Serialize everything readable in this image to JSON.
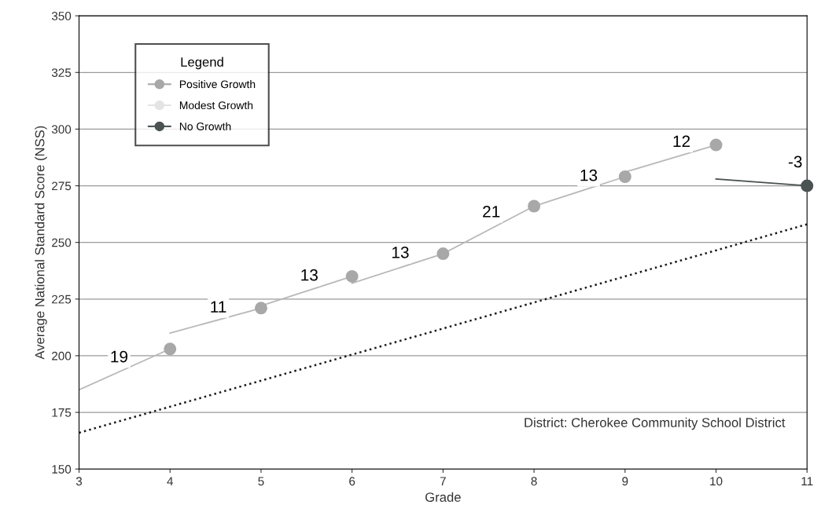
{
  "chart_data": {
    "type": "line",
    "xlabel": "Grade",
    "ylabel": "Average National Standard Score (NSS)",
    "legend_title": "Legend",
    "xlim": [
      3,
      11
    ],
    "xticks": [
      3,
      4,
      5,
      6,
      7,
      8,
      9,
      10,
      11
    ],
    "ylim": [
      150,
      350
    ],
    "yticks": [
      150,
      175,
      200,
      225,
      250,
      275,
      300,
      325,
      350
    ],
    "grid": "y",
    "legend": "top left",
    "series": [
      {
        "color": "#b8b8b8",
        "marker": "none",
        "line_style": "solid",
        "x": [
          3,
          4,
          null,
          4,
          5,
          null,
          5,
          6,
          null,
          6,
          7,
          null,
          7,
          8,
          null,
          8,
          9,
          null,
          9,
          10
        ],
        "values": [
          185,
          203,
          null,
          210,
          221,
          null,
          222,
          235,
          null,
          232,
          245,
          null,
          245,
          266,
          null,
          266,
          279,
          null,
          281,
          293
        ]
      },
      {
        "color": "#4a5252",
        "marker": "none",
        "line_style": "solid",
        "x": [
          10,
          11
        ],
        "values": [
          278,
          275
        ]
      },
      {
        "color": "#1a1a1a",
        "marker": "none",
        "line_style": "dotted",
        "x": [
          3,
          11
        ],
        "values": [
          166,
          258
        ]
      },
      {
        "name": "Positive Growth",
        "type": "scatter",
        "color": "#a8a8a8",
        "marker": "circle",
        "x": [
          4,
          5,
          6,
          7,
          8,
          9,
          10
        ],
        "values": [
          203,
          221,
          235,
          245,
          266,
          279,
          293
        ]
      },
      {
        "name": "Modest Growth",
        "type": "scatter",
        "color": "#e4e4e4",
        "marker": "circle"
      },
      {
        "name": "No Growth",
        "type": "scatter",
        "color": "#4a5252",
        "marker": "circle",
        "x": [
          11
        ],
        "values": [
          275
        ]
      }
    ],
    "annotations": [
      {
        "text": "19",
        "x": 3.44,
        "y": 199
      },
      {
        "text": "11",
        "x": 4.53,
        "y": 221
      },
      {
        "text": "13",
        "x": 5.53,
        "y": 235
      },
      {
        "text": "13",
        "x": 6.53,
        "y": 245
      },
      {
        "text": "21",
        "x": 7.53,
        "y": 263
      },
      {
        "text": "13",
        "x": 8.6,
        "y": 279
      },
      {
        "text": "12",
        "x": 9.62,
        "y": 294
      },
      {
        "text": "-3",
        "x": 10.87,
        "y": 285
      },
      "District: Cherokee Community School District"
    ]
  }
}
